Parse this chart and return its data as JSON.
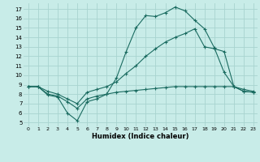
{
  "xlabel": "Humidex (Indice chaleur)",
  "background_color": "#c8ece8",
  "grid_color": "#a8d4cf",
  "line_color": "#1a6b60",
  "xlim_min": -0.5,
  "xlim_max": 23.4,
  "ylim_min": 4.6,
  "ylim_max": 17.6,
  "xticks": [
    0,
    1,
    2,
    3,
    4,
    5,
    6,
    7,
    8,
    9,
    10,
    11,
    12,
    13,
    14,
    15,
    16,
    17,
    18,
    19,
    20,
    21,
    22,
    23
  ],
  "yticks": [
    5,
    6,
    7,
    8,
    9,
    10,
    11,
    12,
    13,
    14,
    15,
    16,
    17
  ],
  "line1_x": [
    0,
    1,
    2,
    3,
    4,
    5,
    6,
    7,
    8,
    9,
    10,
    11,
    12,
    13,
    14,
    15,
    16,
    17,
    18,
    19,
    20,
    21,
    22,
    23
  ],
  "line1_y": [
    8.8,
    8.8,
    7.9,
    7.7,
    6.0,
    5.2,
    7.2,
    7.5,
    8.0,
    9.7,
    12.5,
    15.0,
    16.3,
    16.2,
    16.6,
    17.2,
    16.8,
    15.8,
    14.9,
    12.9,
    10.3,
    8.8,
    8.5,
    8.3
  ],
  "line2_x": [
    0,
    1,
    2,
    3,
    4,
    5,
    6,
    7,
    8,
    9,
    10,
    11,
    12,
    13,
    14,
    15,
    16,
    17,
    18,
    19,
    20,
    21,
    22,
    23
  ],
  "line2_y": [
    8.8,
    8.8,
    8.3,
    8.0,
    7.5,
    7.0,
    8.2,
    8.5,
    8.8,
    9.3,
    10.2,
    11.0,
    12.0,
    12.8,
    13.5,
    14.0,
    14.4,
    14.9,
    13.0,
    12.8,
    12.5,
    8.8,
    8.3,
    8.2
  ],
  "line3_x": [
    0,
    1,
    2,
    3,
    4,
    5,
    6,
    7,
    8,
    9,
    10,
    11,
    12,
    13,
    14,
    15,
    16,
    17,
    18,
    19,
    20,
    21,
    22,
    23
  ],
  "line3_y": [
    8.8,
    8.8,
    8.0,
    7.8,
    7.2,
    6.5,
    7.5,
    7.8,
    8.0,
    8.2,
    8.3,
    8.4,
    8.5,
    8.6,
    8.7,
    8.8,
    8.8,
    8.8,
    8.8,
    8.8,
    8.8,
    8.8,
    8.3,
    8.2
  ]
}
